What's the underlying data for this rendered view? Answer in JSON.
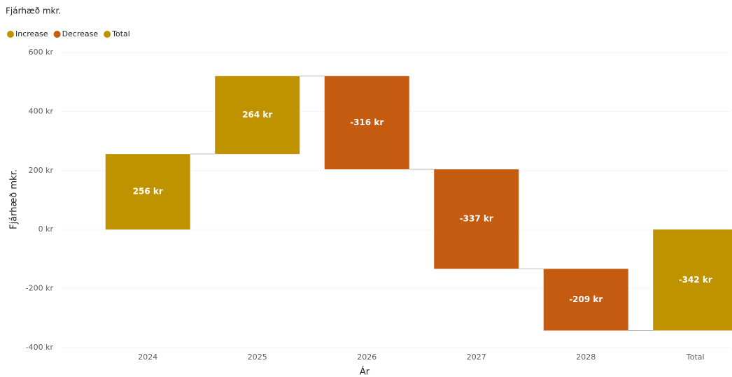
{
  "chart_data": {
    "type": "waterfall",
    "title": "Fjárhæð mkr.",
    "legend": [
      {
        "name": "Increase",
        "color": "#bf9300"
      },
      {
        "name": "Decrease",
        "color": "#c55a11"
      },
      {
        "name": "Total",
        "color": "#bf9300"
      }
    ],
    "categories": [
      "2024",
      "2025",
      "2026",
      "2027",
      "2028",
      "Total"
    ],
    "values": [
      256,
      264,
      -316,
      -337,
      -209,
      -342
    ],
    "value_labels": [
      "256 kr",
      "264 kr",
      "-316 kr",
      "-337 kr",
      "-209 kr",
      "-342 kr"
    ],
    "ylabel": "Fjárhæð mkr.",
    "xlabel": "Ár",
    "ylim": [
      -400,
      600
    ],
    "yticks": [
      {
        "value": -400,
        "label": "-400 kr"
      },
      {
        "value": -200,
        "label": "-200 kr"
      },
      {
        "value": 0,
        "label": "0 kr"
      },
      {
        "value": 200,
        "label": "200 kr"
      },
      {
        "value": 400,
        "label": "400 kr"
      },
      {
        "value": 600,
        "label": "600 kr"
      }
    ],
    "grid": true
  }
}
